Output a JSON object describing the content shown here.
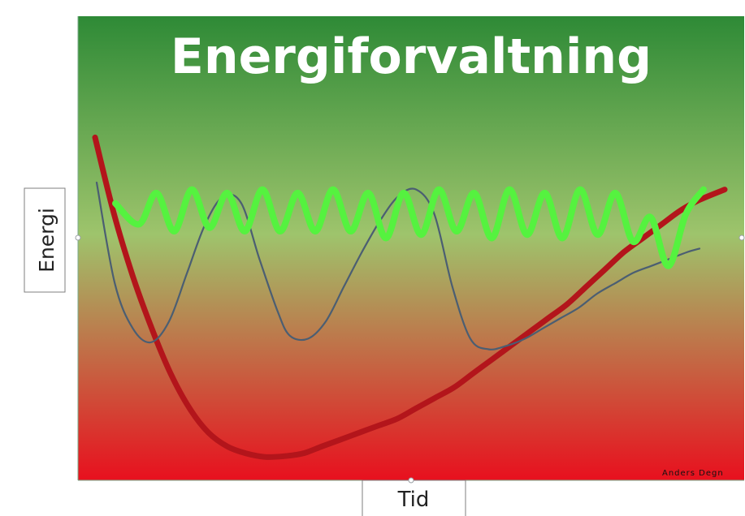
{
  "credit": "Anders Degn",
  "colors": {
    "background_top": "#2e8a36",
    "background_mid": "#9ec46c",
    "background_bottom": "#e8101e",
    "title_text": "#ffffff",
    "sustainable_line": "#55f23f",
    "recovery_line": "#4b5e72",
    "burnout_line": "#b3151b"
  },
  "chart_data": {
    "type": "line",
    "title": "Energiforvaltning",
    "xlabel": "Tid",
    "ylabel": "Energi",
    "x_ticks": [],
    "y_ticks": [],
    "xlim": [
      0,
      100
    ],
    "ylim": [
      0,
      100
    ],
    "grid": false,
    "legend": "none",
    "series": [
      {
        "x": [
          0,
          4,
          7,
          10,
          13,
          16,
          19,
          22,
          25,
          28,
          31,
          34,
          37,
          40,
          43,
          46,
          49,
          52,
          55,
          58,
          61,
          64,
          67,
          70,
          73,
          76,
          79,
          82,
          85,
          88,
          91,
          94,
          97,
          100
        ],
        "y": [
          76,
          70,
          79,
          68,
          80,
          69,
          79,
          68,
          80,
          68,
          79,
          68,
          80,
          68,
          79,
          66,
          79,
          67,
          80,
          68,
          79,
          66,
          80,
          67,
          79,
          66,
          80,
          67,
          79,
          65,
          72,
          58,
          73,
          80
        ]
      },
      {
        "x": [
          0,
          3,
          6,
          9,
          12,
          15,
          18,
          21,
          24,
          27,
          30,
          32,
          35,
          38,
          41,
          44,
          47,
          50,
          53,
          56,
          59,
          62,
          65,
          68,
          71,
          74,
          77,
          80,
          83,
          86,
          89,
          92,
          95,
          98,
          100
        ],
        "y": [
          82,
          53,
          40,
          36,
          42,
          56,
          70,
          78,
          76,
          60,
          45,
          38,
          37,
          42,
          52,
          62,
          71,
          78,
          80,
          73,
          52,
          37,
          34,
          35,
          37,
          40,
          43,
          46,
          50,
          53,
          56,
          58,
          60,
          62,
          63
        ]
      },
      {
        "x": [
          0,
          3,
          6,
          9,
          12,
          15,
          18,
          21,
          24,
          27,
          30,
          33,
          36,
          39,
          42,
          45,
          48,
          51,
          54,
          57,
          60,
          63,
          66,
          69,
          72,
          75,
          78,
          81,
          84,
          87,
          90,
          93,
          96,
          100
        ],
        "y": [
          95,
          73,
          55,
          40,
          27,
          17,
          10,
          6,
          4,
          3,
          3.2,
          4,
          6,
          8,
          10,
          12,
          14,
          17,
          20,
          23,
          27,
          31,
          35,
          39,
          43,
          47,
          52,
          57,
          62,
          66,
          70,
          74,
          77,
          80
        ]
      }
    ]
  }
}
